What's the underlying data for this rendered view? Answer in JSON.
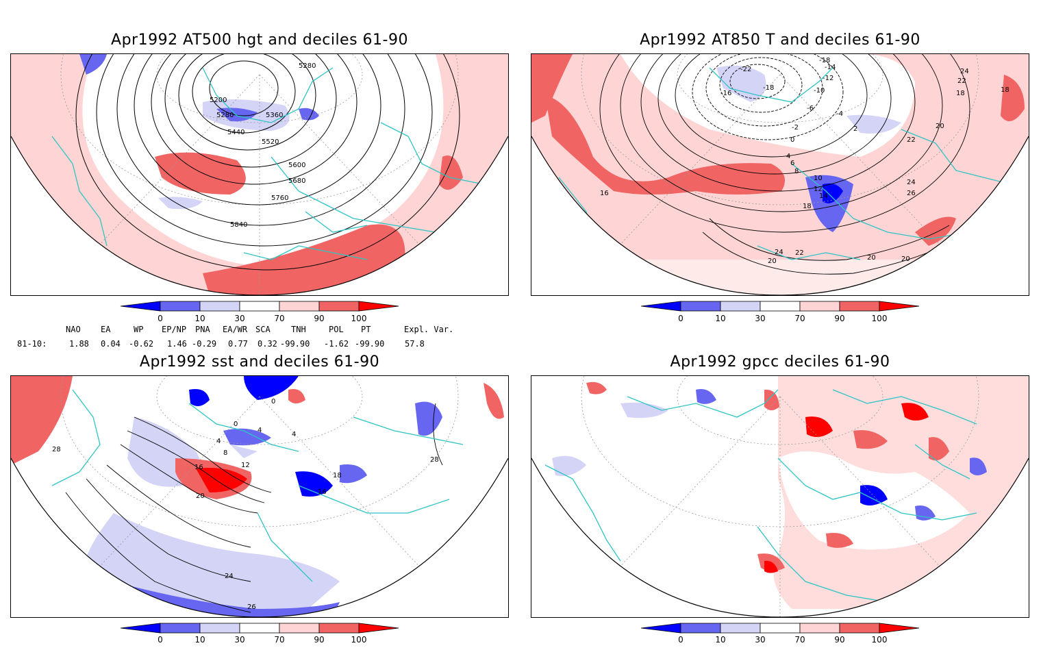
{
  "panels": [
    {
      "id": "p1",
      "title": "Apr1992 AT500 hgt and deciles 61-90",
      "contour_labels": [
        "5200",
        "5280",
        "5280",
        "5360",
        "5440",
        "5520",
        "5600",
        "5680",
        "5760",
        "5840"
      ]
    },
    {
      "id": "p2",
      "title": "Apr1992 AT850 T and deciles 61-90",
      "contour_labels": [
        "-18",
        "-22",
        "-18",
        "-16",
        "-14",
        "-12",
        "-10",
        "-6",
        "-4",
        "-2",
        "0",
        "2",
        "4",
        "6",
        "8",
        "10",
        "12",
        "14",
        "16",
        "18",
        "18",
        "18",
        "20",
        "20",
        "20",
        "22",
        "22",
        "24",
        "24",
        "26",
        "20",
        "22",
        "24"
      ]
    },
    {
      "id": "p3",
      "title": "Apr1992 sst and deciles 61-90",
      "contour_labels": [
        "0",
        "0",
        "4",
        "4",
        "4",
        "8",
        "12",
        "16",
        "16",
        "18",
        "20",
        "24",
        "26",
        "28",
        "28"
      ]
    },
    {
      "id": "p4",
      "title": "Apr1992 gpcc deciles 61-90",
      "contour_labels": []
    }
  ],
  "colorbar": {
    "ticks": [
      "0",
      "10",
      "30",
      "70",
      "90",
      "100"
    ],
    "colors": [
      "#0000ff",
      "#6666f0",
      "#d4d4f7",
      "#ffffff",
      "#ffd4d4",
      "#f06464",
      "#ff0000"
    ]
  },
  "indices": {
    "headers": [
      "NAO",
      "EA",
      "WP",
      "EP/NP",
      "PNA",
      "EA/WR",
      "SCA",
      "TNH",
      "POL",
      "PT",
      "Expl. Var."
    ],
    "row_label": "81-10:",
    "values": [
      "1.88",
      "0.04",
      "-0.62",
      "1.46",
      "-0.29",
      "0.77",
      "0.32",
      "-99.90",
      "-1.62",
      "-99.90",
      "57.8"
    ]
  },
  "colors": {
    "coast": "#2ec4c4",
    "red_light": "#ffd4d4",
    "red_mid": "#f06464",
    "red_dark": "#ff0000",
    "blue_light": "#d4d4f7",
    "blue_mid": "#6666f0",
    "blue_dark": "#0000ff"
  }
}
